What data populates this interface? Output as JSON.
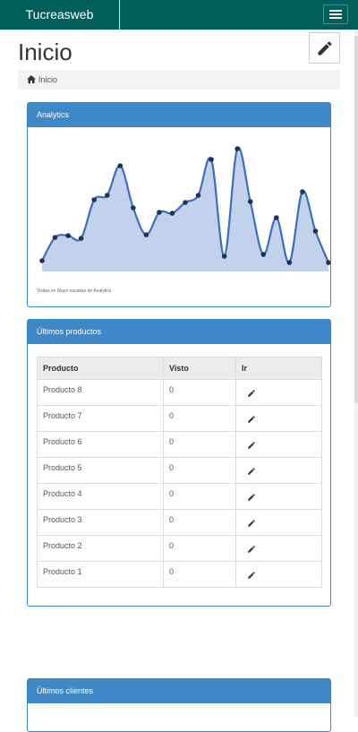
{
  "header": {
    "brand": "Tucreasweb",
    "menu_icon": "hamburger-icon"
  },
  "page": {
    "title": "Inicio",
    "edit_icon": "pencil-icon"
  },
  "breadcrumb": {
    "icon": "home-icon",
    "label": "Inicio"
  },
  "analytics": {
    "title": "Analytics",
    "caption": "Visitas en Mayo sacadas de Analytics"
  },
  "chart_data": {
    "type": "area",
    "x": [
      1,
      2,
      3,
      4,
      5,
      6,
      7,
      8,
      9,
      10,
      11,
      12,
      13,
      14,
      15,
      16,
      17,
      18,
      19,
      20,
      21,
      22,
      23
    ],
    "values": [
      12,
      38,
      40,
      37,
      80,
      85,
      118,
      71,
      41,
      66,
      65,
      77,
      85,
      125,
      17,
      137,
      78,
      19,
      60,
      10,
      89,
      45,
      10
    ],
    "ylim": [
      0,
      150
    ],
    "color": "#3b6fc0",
    "fill": "#c3d2ec"
  },
  "products": {
    "title": "Últimos productos",
    "columns": [
      "Producto",
      "Visto",
      "Ir"
    ],
    "rows": [
      {
        "name": "Producto 8",
        "seen": "0"
      },
      {
        "name": "Producto 7",
        "seen": "0"
      },
      {
        "name": "Producto 6",
        "seen": "0"
      },
      {
        "name": "Producto 5",
        "seen": "0"
      },
      {
        "name": "Producto 4",
        "seen": "0"
      },
      {
        "name": "Producto 3",
        "seen": "0"
      },
      {
        "name": "Producto 2",
        "seen": "0"
      },
      {
        "name": "Producto 1",
        "seen": "0"
      }
    ]
  },
  "clients": {
    "title": "Últimos clientes"
  }
}
